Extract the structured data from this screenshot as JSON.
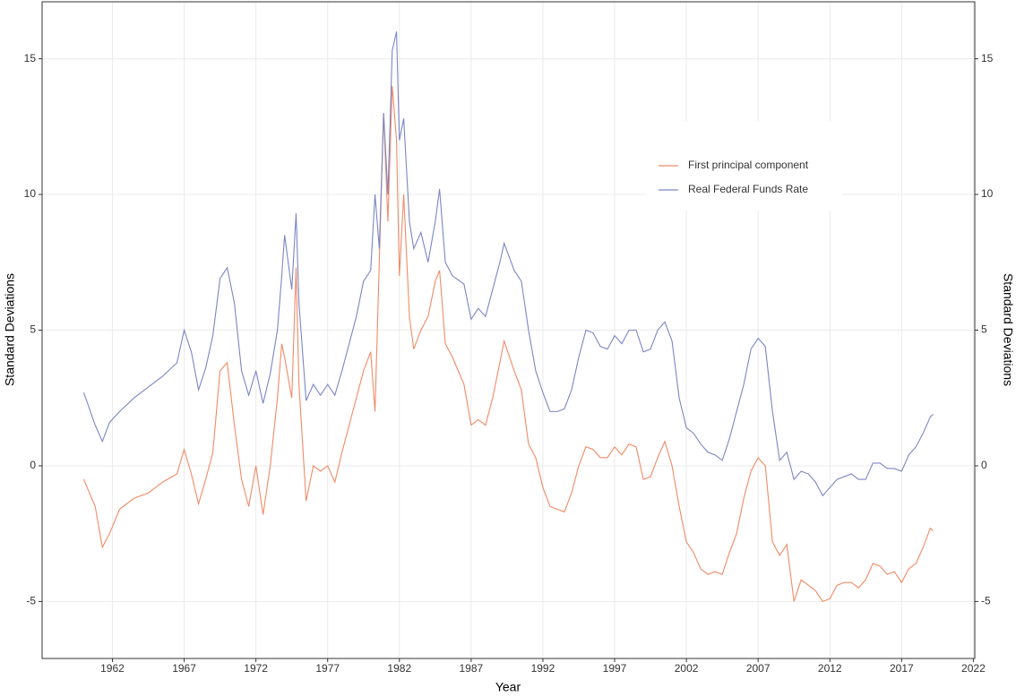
{
  "chart_data": {
    "type": "line",
    "xlabel": "Year",
    "ylabel": "Standard Deviations",
    "y2label": "Standard Deviations",
    "x": [
      1960.0,
      1960.8,
      1961.3,
      1961.8,
      1962.5,
      1963.5,
      1964.5,
      1965.5,
      1966.5,
      1967.0,
      1967.5,
      1968.0,
      1968.5,
      1969.0,
      1969.5,
      1970.0,
      1970.5,
      1971.0,
      1971.5,
      1972.0,
      1972.5,
      1973.0,
      1973.5,
      1973.8,
      1974.0,
      1974.5,
      1974.8,
      1975.0,
      1975.5,
      1976.0,
      1976.5,
      1977.0,
      1977.5,
      1978.0,
      1978.5,
      1979.0,
      1979.5,
      1980.0,
      1980.3,
      1980.6,
      1980.9,
      1981.2,
      1981.5,
      1981.8,
      1982.0,
      1982.3,
      1982.7,
      1983.0,
      1983.5,
      1984.0,
      1984.5,
      1984.8,
      1985.2,
      1985.7,
      1986.5,
      1987.0,
      1987.5,
      1988.0,
      1988.5,
      1989.0,
      1989.3,
      1990.0,
      1990.5,
      1991.0,
      1991.5,
      1992.0,
      1992.5,
      1993.0,
      1993.5,
      1994.0,
      1994.5,
      1995.0,
      1995.5,
      1996.0,
      1996.5,
      1997.0,
      1997.5,
      1998.0,
      1998.5,
      1999.0,
      1999.5,
      2000.0,
      2000.5,
      2001.0,
      2001.5,
      2002.0,
      2002.5,
      2003.0,
      2003.5,
      2004.0,
      2004.5,
      2005.0,
      2005.5,
      2006.0,
      2006.5,
      2007.0,
      2007.5,
      2008.0,
      2008.5,
      2009.0,
      2009.5,
      2010.0,
      2010.5,
      2011.0,
      2011.5,
      2012.0,
      2012.5,
      2013.0,
      2013.5,
      2014.0,
      2014.5,
      2015.0,
      2015.5,
      2016.0,
      2016.5,
      2017.0,
      2017.5,
      2018.0,
      2018.5,
      2019.0,
      2019.2
    ],
    "series": [
      {
        "name": "First principal component",
        "color": "#f08a66",
        "values": [
          -0.5,
          -1.5,
          -3.0,
          -2.5,
          -1.6,
          -1.2,
          -1.0,
          -0.6,
          -0.3,
          0.6,
          -0.3,
          -1.4,
          -0.5,
          0.5,
          3.5,
          3.8,
          1.5,
          -0.5,
          -1.5,
          0.0,
          -1.8,
          0.0,
          2.5,
          4.5,
          4.0,
          2.5,
          7.3,
          3.0,
          -1.3,
          0.0,
          -0.2,
          0.0,
          -0.6,
          0.5,
          1.5,
          2.5,
          3.5,
          4.2,
          2.0,
          7.5,
          13.0,
          9.0,
          14.0,
          12.0,
          7.0,
          10.0,
          5.5,
          4.3,
          5.0,
          5.5,
          6.8,
          7.2,
          4.5,
          4.0,
          3.0,
          1.5,
          1.7,
          1.5,
          2.5,
          3.8,
          4.6,
          3.5,
          2.8,
          0.8,
          0.3,
          -0.8,
          -1.5,
          -1.6,
          -1.7,
          -1.0,
          0.0,
          0.7,
          0.6,
          0.3,
          0.3,
          0.7,
          0.4,
          0.8,
          0.7,
          -0.5,
          -0.4,
          0.3,
          0.9,
          0.0,
          -1.5,
          -2.8,
          -3.2,
          -3.8,
          -4.0,
          -3.9,
          -4.0,
          -3.2,
          -2.5,
          -1.2,
          -0.2,
          0.3,
          0.0,
          -2.8,
          -3.3,
          -2.9,
          -5.0,
          -4.2,
          -4.4,
          -4.6,
          -5.0,
          -4.9,
          -4.4,
          -4.3,
          -4.3,
          -4.5,
          -4.2,
          -3.6,
          -3.7,
          -4.0,
          -3.9,
          -4.3,
          -3.8,
          -3.6,
          -3.0,
          -2.3,
          -2.4
        ]
      },
      {
        "name": "Real Federal Funds Rate",
        "color": "#7b86c4",
        "values": [
          2.7,
          1.5,
          0.9,
          1.6,
          2.0,
          2.5,
          2.9,
          3.3,
          3.8,
          5.0,
          4.2,
          2.8,
          3.6,
          4.8,
          6.9,
          7.3,
          6.0,
          3.5,
          2.6,
          3.5,
          2.3,
          3.4,
          5.0,
          7.0,
          8.5,
          6.5,
          9.3,
          6.0,
          2.4,
          3.0,
          2.6,
          3.0,
          2.6,
          3.5,
          4.5,
          5.5,
          6.8,
          7.2,
          10.0,
          8.0,
          13.0,
          10.0,
          15.3,
          16.0,
          12.0,
          12.8,
          9.0,
          8.0,
          8.6,
          7.5,
          9.0,
          10.2,
          7.5,
          7.0,
          6.7,
          5.4,
          5.8,
          5.5,
          6.5,
          7.5,
          8.2,
          7.2,
          6.8,
          5.0,
          3.5,
          2.7,
          2.0,
          2.0,
          2.1,
          2.8,
          4.0,
          5.0,
          4.9,
          4.4,
          4.3,
          4.8,
          4.5,
          5.0,
          5.0,
          4.2,
          4.3,
          5.0,
          5.3,
          4.6,
          2.5,
          1.4,
          1.2,
          0.8,
          0.5,
          0.4,
          0.2,
          1.0,
          2.0,
          3.0,
          4.3,
          4.7,
          4.4,
          2.0,
          0.2,
          0.5,
          -0.5,
          -0.2,
          -0.3,
          -0.6,
          -1.1,
          -0.8,
          -0.5,
          -0.4,
          -0.3,
          -0.5,
          -0.5,
          0.1,
          0.1,
          -0.1,
          -0.1,
          -0.2,
          0.4,
          0.7,
          1.2,
          1.8,
          1.9
        ]
      }
    ],
    "xlim": [
      1957.1,
      2022.1
    ],
    "xticks": [
      1962,
      1967,
      1972,
      1977,
      1982,
      1987,
      1992,
      1997,
      2002,
      2007,
      2012,
      2017,
      2022
    ],
    "ylim": [
      -7.1,
      17.1
    ],
    "yticks": [
      -5,
      0,
      5,
      10,
      15
    ],
    "y2lim": [
      -7.1,
      17.1
    ],
    "y2ticks": [
      -5,
      0,
      5,
      10,
      15
    ],
    "grid": true,
    "legend": "upper right"
  }
}
